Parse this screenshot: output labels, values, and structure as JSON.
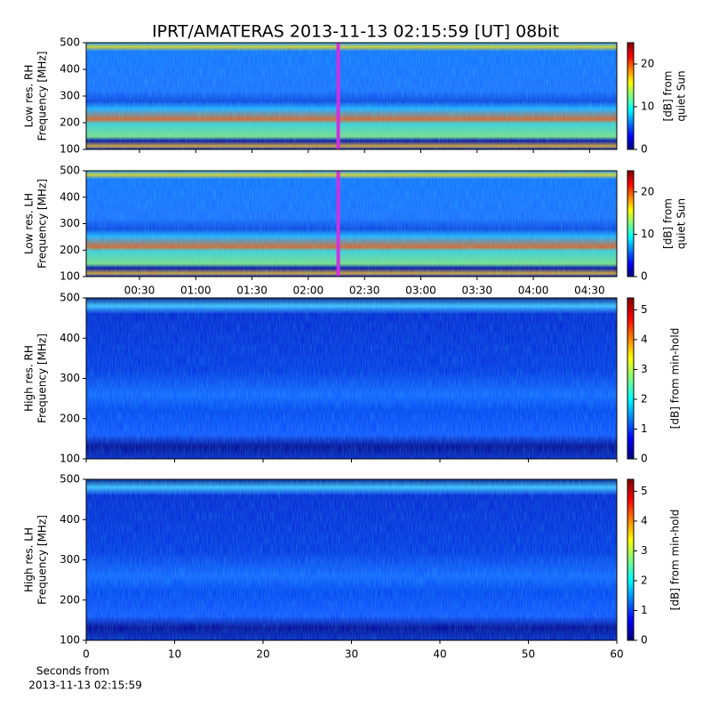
{
  "title": "IPRT/AMATERAS 2013-11-13 02:15:59 [UT]   08bit",
  "chart_data": [
    {
      "type": "heatmap",
      "ylabel": [
        "Low res. RH",
        "Frequency [MHz]"
      ],
      "ylim": [
        100,
        500
      ],
      "yticks": [
        100,
        200,
        300,
        400,
        500
      ],
      "xlim": [
        1.6,
        284.5
      ],
      "xticks": [
        {
          "value": 30,
          "label": "00:30"
        },
        {
          "value": 60,
          "label": "01:00"
        },
        {
          "value": 90,
          "label": "01:30"
        },
        {
          "value": 120,
          "label": "02:00"
        },
        {
          "value": 150,
          "label": "02:30"
        },
        {
          "value": 180,
          "label": "03:00"
        },
        {
          "value": 210,
          "label": "03:30"
        },
        {
          "value": 240,
          "label": "04:00"
        },
        {
          "value": 270,
          "label": "04:30"
        }
      ],
      "show_xtick_labels": false,
      "marker_x": 135.98,
      "marker_color": "#d030e0",
      "resolution": "low",
      "colorbar": {
        "clim": [
          0,
          25
        ],
        "ticks": [
          0,
          10,
          20
        ],
        "label": [
          "[dB] from",
          "quiet Sun"
        ]
      }
    },
    {
      "type": "heatmap",
      "ylabel": [
        "Low res. LH",
        "Frequency [MHz]"
      ],
      "ylim": [
        100,
        500
      ],
      "yticks": [
        100,
        200,
        300,
        400,
        500
      ],
      "xlim": [
        1.6,
        284.5
      ],
      "xticks": [
        {
          "value": 30,
          "label": "00:30"
        },
        {
          "value": 60,
          "label": "01:00"
        },
        {
          "value": 90,
          "label": "01:30"
        },
        {
          "value": 120,
          "label": "02:00"
        },
        {
          "value": 150,
          "label": "02:30"
        },
        {
          "value": 180,
          "label": "03:00"
        },
        {
          "value": 210,
          "label": "03:30"
        },
        {
          "value": 240,
          "label": "04:00"
        },
        {
          "value": 270,
          "label": "04:30"
        }
      ],
      "show_xtick_labels": true,
      "marker_x": 135.98,
      "marker_color": "#d030e0",
      "resolution": "low",
      "colorbar": {
        "clim": [
          0,
          25
        ],
        "ticks": [
          0,
          10,
          20
        ],
        "label": [
          "[dB] from",
          "quiet Sun"
        ]
      }
    },
    {
      "type": "heatmap",
      "ylabel": [
        "High res. RH",
        "Frequency [MHz]"
      ],
      "ylim": [
        100,
        500
      ],
      "yticks": [
        100,
        200,
        300,
        400,
        500
      ],
      "xlim": [
        0,
        60
      ],
      "xticks": [
        0,
        10,
        20,
        30,
        40,
        50,
        60
      ],
      "show_xtick_labels": false,
      "resolution": "high",
      "colorbar": {
        "clim": [
          0,
          5.4
        ],
        "ticks": [
          0,
          1,
          2,
          3,
          4,
          5
        ],
        "label": [
          "[dB] from min-hold"
        ]
      }
    },
    {
      "type": "heatmap",
      "ylabel": [
        "High res. LH",
        "Frequency [MHz]"
      ],
      "ylim": [
        100,
        500
      ],
      "yticks": [
        100,
        200,
        300,
        400,
        500
      ],
      "xlim": [
        0,
        60
      ],
      "xticks": [
        0,
        10,
        20,
        30,
        40,
        50,
        60
      ],
      "show_xtick_labels": true,
      "resolution": "high",
      "xlabel": [
        "Seconds from",
        "2013-11-13 02:15:59"
      ],
      "colorbar": {
        "clim": [
          0,
          5.4
        ],
        "ticks": [
          0,
          1,
          2,
          3,
          4,
          5
        ],
        "label": [
          "[dB] from min-hold"
        ]
      }
    }
  ]
}
